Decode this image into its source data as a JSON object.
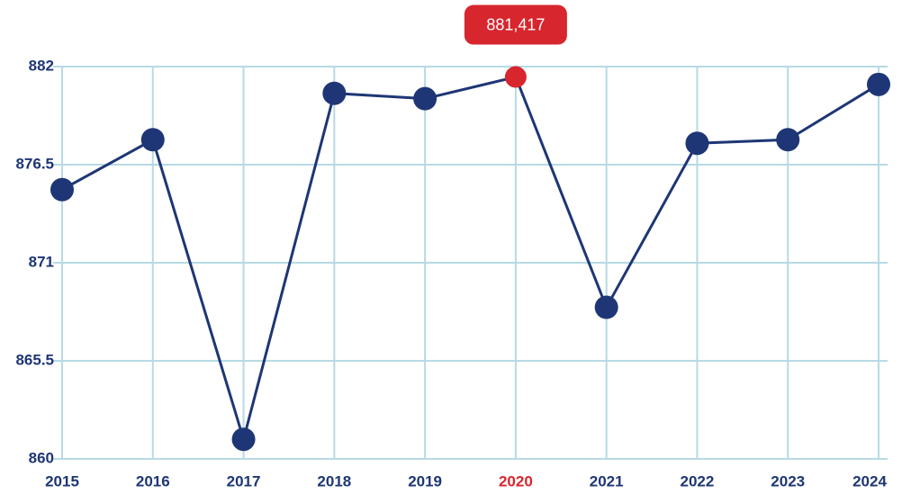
{
  "chart_data": {
    "type": "line",
    "categories": [
      "2015",
      "2016",
      "2017",
      "2018",
      "2019",
      "2020",
      "2021",
      "2022",
      "2023",
      "2024"
    ],
    "series": [
      {
        "name": null,
        "color": "#1e3675",
        "values": [
          875.1,
          877.9,
          861.1,
          880.5,
          880.2,
          881.417,
          868.5,
          877.7,
          877.9,
          881.0
        ],
        "value_labels": [
          null,
          null,
          null,
          null,
          null,
          "881,417",
          null,
          null,
          null,
          null
        ]
      }
    ],
    "highlight_index": 5,
    "highlight_color": "#d7262e",
    "ylim": [
      860,
      882
    ],
    "yticks": [
      860,
      865.5,
      871,
      876.5,
      882
    ],
    "grid": true
  }
}
